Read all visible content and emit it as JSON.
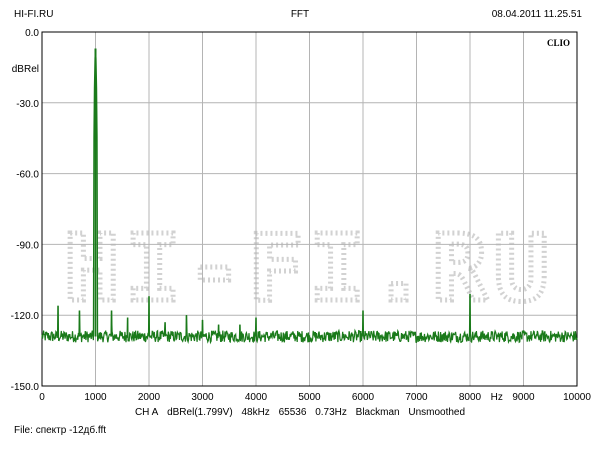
{
  "header": {
    "left": "HI-FI.RU",
    "center": "FFT",
    "right": "08.04.2011 11.25.51"
  },
  "brand": "CLIO",
  "watermark": "HI-FI.RU",
  "footer": {
    "channel": "CH A",
    "unit": "dBRel(1.799V)",
    "rate": "48kHz",
    "fft_size": "65536",
    "resolution": "0.73Hz",
    "window": "Blackman",
    "smoothing": "Unsmoothed",
    "file_label": "File:",
    "file_name": "спектр -12дб.fft"
  },
  "colors": {
    "trace": "#1a7a1a",
    "grid": "#b4b4b4",
    "frame": "#000000",
    "watermark": "#d2d2d2"
  },
  "chart_data": {
    "type": "line",
    "title": "FFT",
    "xlabel": "Hz",
    "ylabel": "dBRel",
    "xlim": [
      0,
      10000
    ],
    "ylim": [
      -150,
      0
    ],
    "grid": true,
    "x_ticks": [
      "0",
      "1000",
      "2000",
      "3000",
      "4000",
      "5000",
      "6000",
      "7000",
      "8000",
      "Hz",
      "9000",
      "10000"
    ],
    "y_ticks": [
      "0.0",
      "dBRel",
      "-30.0",
      "-60.0",
      "-90.0",
      "-120.0",
      "-150.0"
    ],
    "series": [
      {
        "noise_floor_db": -129,
        "peaks": [
          {
            "x": 300,
            "y": -116
          },
          {
            "x": 700,
            "y": -118
          },
          {
            "x": 1000,
            "y": -7
          },
          {
            "x": 1300,
            "y": -118
          },
          {
            "x": 1600,
            "y": -121
          },
          {
            "x": 2000,
            "y": -112
          },
          {
            "x": 2300,
            "y": -123
          },
          {
            "x": 2700,
            "y": -120
          },
          {
            "x": 3000,
            "y": -122
          },
          {
            "x": 3300,
            "y": -124
          },
          {
            "x": 3700,
            "y": -124
          },
          {
            "x": 4000,
            "y": -121
          },
          {
            "x": 6000,
            "y": -118
          },
          {
            "x": 8000,
            "y": -111
          }
        ]
      }
    ]
  }
}
